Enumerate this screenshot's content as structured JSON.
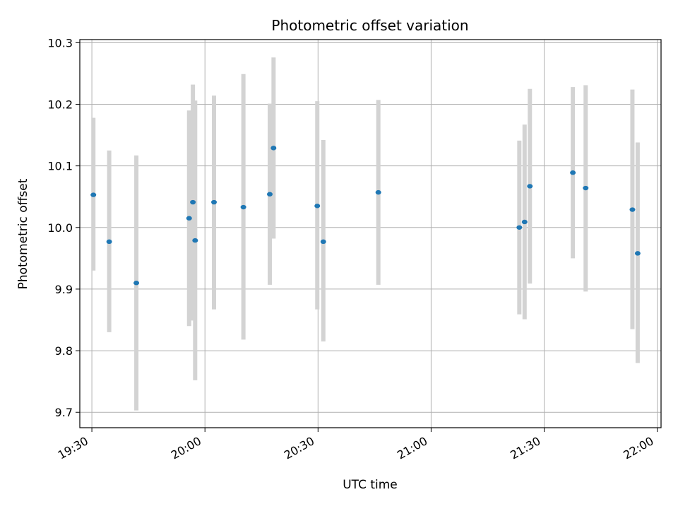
{
  "chart_data": {
    "type": "scatter",
    "title": "Photometric offset variation",
    "xlabel": "UTC time",
    "ylabel": "Photometric offset",
    "x_tick_labels": [
      "19:30",
      "20:00",
      "20:30",
      "21:00",
      "21:30",
      "22:00"
    ],
    "x_ticks": [
      "19:30",
      "20:00",
      "20:30",
      "21:00",
      "21:30",
      "22:00"
    ],
    "xlim": [
      "19:26.8",
      "22:01.0"
    ],
    "y_tick_labels": [
      "9.7",
      "9.8",
      "9.9",
      "10.0",
      "10.1",
      "10.2",
      "10.3"
    ],
    "y_ticks": [
      9.7,
      9.8,
      9.9,
      10.0,
      10.1,
      10.2,
      10.3
    ],
    "ylim": [
      9.675,
      10.305
    ],
    "grid": true,
    "error_bar_color": "#d3d3d3",
    "marker_color": "#1f77b4",
    "series": [
      {
        "points": [
          {
            "time": "19:30.4",
            "y": 10.053,
            "y_low": 9.93,
            "y_high": 10.178
          },
          {
            "time": "19:34.6",
            "y": 9.977,
            "y_low": 9.83,
            "y_high": 10.125
          },
          {
            "time": "19:41.8",
            "y": 9.91,
            "y_low": 9.703,
            "y_high": 10.117
          },
          {
            "time": "19:55.8",
            "y": 10.015,
            "y_low": 9.84,
            "y_high": 10.19
          },
          {
            "time": "19:56.8",
            "y": 10.041,
            "y_low": 9.849,
            "y_high": 10.232
          },
          {
            "time": "19:57.4",
            "y": 9.979,
            "y_low": 9.752,
            "y_high": 10.206
          },
          {
            "time": "20:02.4",
            "y": 10.041,
            "y_low": 9.867,
            "y_high": 10.214
          },
          {
            "time": "20:10.2",
            "y": 10.033,
            "y_low": 9.818,
            "y_high": 10.249
          },
          {
            "time": "20:17.2",
            "y": 10.054,
            "y_low": 9.907,
            "y_high": 10.201
          },
          {
            "time": "20:18.2",
            "y": 10.129,
            "y_low": 9.982,
            "y_high": 10.276
          },
          {
            "time": "20:29.8",
            "y": 10.035,
            "y_low": 9.867,
            "y_high": 10.205
          },
          {
            "time": "20:31.4",
            "y": 9.977,
            "y_low": 9.815,
            "y_high": 10.142
          },
          {
            "time": "20:46.0",
            "y": 10.057,
            "y_low": 9.907,
            "y_high": 10.207
          },
          {
            "time": "21:23.4",
            "y": 10.0,
            "y_low": 9.859,
            "y_high": 10.141
          },
          {
            "time": "21:24.8",
            "y": 10.009,
            "y_low": 9.851,
            "y_high": 10.167
          },
          {
            "time": "21:26.2",
            "y": 10.067,
            "y_low": 9.909,
            "y_high": 10.225
          },
          {
            "time": "21:37.6",
            "y": 10.089,
            "y_low": 9.95,
            "y_high": 10.228
          },
          {
            "time": "21:41.0",
            "y": 10.064,
            "y_low": 9.896,
            "y_high": 10.231
          },
          {
            "time": "21:53.4",
            "y": 10.029,
            "y_low": 9.835,
            "y_high": 10.224
          },
          {
            "time": "21:54.8",
            "y": 9.958,
            "y_low": 9.78,
            "y_high": 10.138
          }
        ]
      }
    ]
  }
}
